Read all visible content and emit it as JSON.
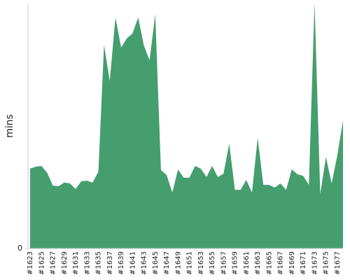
{
  "chart_data": {
    "type": "area",
    "y_label": "mins",
    "color": "#459e6d",
    "categories": [
      "#1623",
      null,
      "#1625",
      null,
      "#1627",
      null,
      "#1629",
      null,
      "#1631",
      null,
      "#1633",
      null,
      "#1635",
      null,
      "#1637",
      null,
      "#1639",
      null,
      "#1641",
      null,
      "#1643",
      null,
      "#1645",
      null,
      "#1647",
      null,
      "#1649",
      null,
      "#1651",
      null,
      "#1653",
      null,
      "#1655",
      null,
      "#1657",
      null,
      "#1659",
      null,
      "#1661",
      null,
      "#1663",
      null,
      "#1665",
      null,
      "#1667",
      null,
      "#1669",
      null,
      "#1671",
      null,
      "#1673",
      null,
      "#1675",
      null,
      "#1677",
      null
    ],
    "values": [
      32.5,
      33.3,
      33.6,
      30.8,
      25.6,
      25.4,
      26.8,
      26.5,
      24.2,
      27.4,
      27.6,
      26.8,
      31.3,
      82.9,
      68.1,
      94,
      81.8,
      85.5,
      87.5,
      94,
      82.6,
      76.6,
      95.4,
      31.9,
      29.9,
      22.8,
      32.2,
      28.8,
      28.8,
      33.6,
      32.5,
      29.1,
      33.6,
      29.1,
      30.5,
      42.7,
      23.9,
      23.9,
      27.9,
      22.8,
      45,
      25.9,
      25.9,
      24.8,
      26.5,
      23.9,
      32.2,
      30.2,
      29.6,
      25.9,
      100,
      22.2,
      37.3,
      26.5,
      37.9,
      52.1
    ],
    "ylim": [
      0,
      100
    ],
    "yticks": [
      0
    ]
  }
}
